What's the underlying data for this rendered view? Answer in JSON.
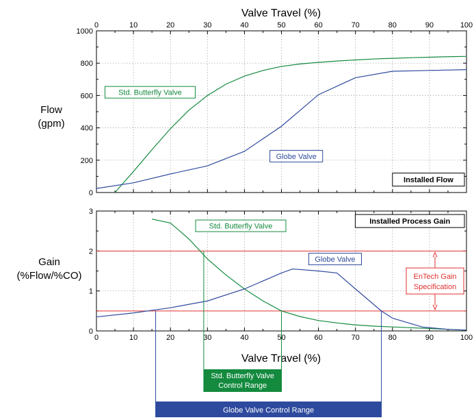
{
  "chart_data": [
    {
      "type": "line",
      "panel": "top",
      "box_label": "Installed Flow",
      "top_xlabel": "Valve Travel (%)",
      "ylabel_lines": [
        "Flow",
        "(gpm)"
      ],
      "xlim": [
        0,
        100
      ],
      "ylim": [
        0,
        1000
      ],
      "xticks": [
        0,
        10,
        20,
        30,
        40,
        50,
        60,
        70,
        80,
        90,
        100
      ],
      "yticks": [
        0,
        200,
        400,
        600,
        800,
        1000
      ],
      "grid": true,
      "series": [
        {
          "name": "Std. Butterfly Valve",
          "color": "#138a3e",
          "x": [
            5,
            10,
            15,
            20,
            25,
            30,
            35,
            40,
            45,
            50,
            55,
            60,
            65,
            70,
            75,
            80,
            85,
            90,
            95,
            100
          ],
          "y": [
            0,
            130,
            265,
            395,
            510,
            600,
            670,
            720,
            755,
            780,
            795,
            805,
            813,
            820,
            826,
            830,
            834,
            837,
            840,
            842
          ]
        },
        {
          "name": "Globe Valve",
          "color": "#2e4a9e",
          "x": [
            0,
            10,
            20,
            30,
            40,
            50,
            60,
            70,
            80,
            90,
            100
          ],
          "y": [
            25,
            60,
            115,
            165,
            255,
            410,
            605,
            710,
            750,
            755,
            760
          ]
        }
      ]
    },
    {
      "type": "line",
      "panel": "bottom",
      "box_label": "Installed Process Gain",
      "xlabel": "Valve Travel (%)",
      "ylabel_lines": [
        "Gain",
        "(%Flow/%CO)"
      ],
      "xlim": [
        0,
        100
      ],
      "ylim": [
        0,
        3
      ],
      "xticks": [
        0,
        10,
        20,
        30,
        40,
        50,
        60,
        70,
        80,
        90,
        100
      ],
      "yticks": [
        0,
        1,
        2,
        3
      ],
      "grid": true,
      "spec_lines": [
        0.5,
        2
      ],
      "spec_label_lines": [
        "EnTech Gain",
        "Specification"
      ],
      "series": [
        {
          "name": "Std. Butterfly Valve",
          "color": "#138a3e",
          "x": [
            15,
            20,
            25,
            30,
            35,
            40,
            45,
            50,
            55,
            60,
            65,
            70,
            75,
            80,
            85,
            90,
            95,
            100
          ],
          "y": [
            2.8,
            2.7,
            2.3,
            1.8,
            1.4,
            1.05,
            0.75,
            0.5,
            0.36,
            0.26,
            0.2,
            0.15,
            0.12,
            0.1,
            0.08,
            0.06,
            0.04,
            0.02
          ]
        },
        {
          "name": "Globe Valve",
          "color": "#2e4a9e",
          "x": [
            0,
            10,
            20,
            30,
            40,
            50,
            53,
            60,
            65,
            70,
            77,
            80,
            88,
            95,
            100
          ],
          "y": [
            0.35,
            0.45,
            0.58,
            0.75,
            1.05,
            1.45,
            1.55,
            1.5,
            1.45,
            1.05,
            0.5,
            0.32,
            0.1,
            0.04,
            0.02
          ]
        }
      ]
    }
  ],
  "control_ranges": [
    {
      "label_lines": [
        "Std. Butterfly Valve",
        "Control Range"
      ],
      "color": "#138a3e",
      "x_start": 29,
      "x_end": 50
    },
    {
      "label_lines": [
        "Globe Valve Control Range"
      ],
      "color": "#2e4a9e",
      "x_start": 16,
      "x_end": 77
    }
  ]
}
